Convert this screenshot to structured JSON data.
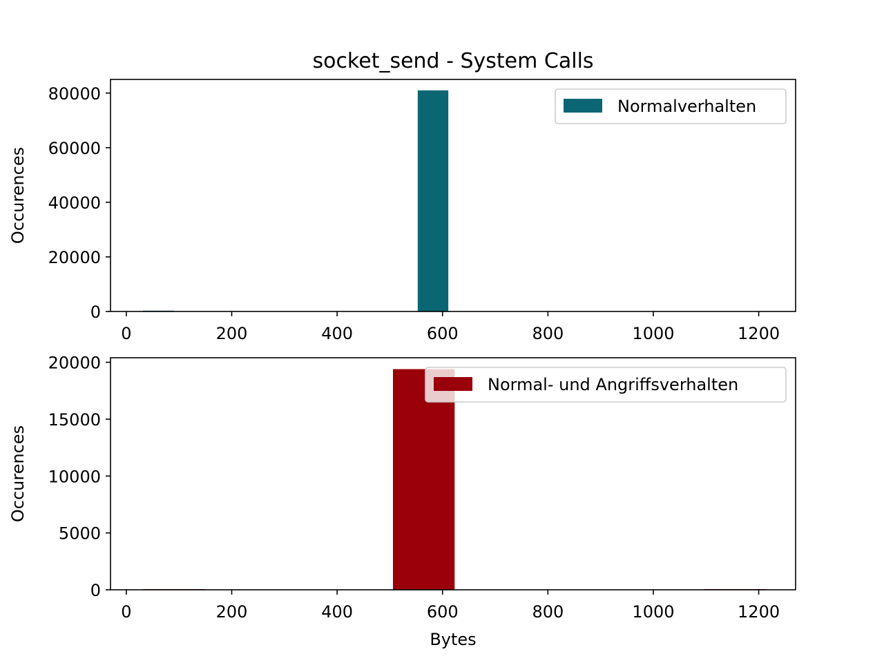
{
  "figure_title": "socket_send - System Calls",
  "chart_data": [
    {
      "type": "bar",
      "title": "socket_send - System Calls",
      "xlabel": "",
      "ylabel": "Occurences",
      "xlim": [
        -30,
        1270
      ],
      "ylim": [
        0,
        85000
      ],
      "xticks": [
        0,
        200,
        400,
        600,
        800,
        1000,
        1200
      ],
      "yticks": [
        0,
        20000,
        40000,
        60000,
        80000
      ],
      "grid": false,
      "legend_position": "top-right",
      "series": [
        {
          "name": "Normalverhalten",
          "color": "#0a6673",
          "bins": [
            {
              "x0": 32,
              "x1": 90,
              "value": 300
            },
            {
              "x0": 553,
              "x1": 611,
              "value": 81000
            }
          ]
        }
      ]
    },
    {
      "type": "bar",
      "title": "",
      "xlabel": "Bytes",
      "ylabel": "Occurences",
      "xlim": [
        -30,
        1270
      ],
      "ylim": [
        0,
        20400
      ],
      "xticks": [
        0,
        200,
        400,
        600,
        800,
        1000,
        1200
      ],
      "yticks": [
        0,
        5000,
        10000,
        15000,
        20000
      ],
      "grid": false,
      "legend_position": "top-right",
      "series": [
        {
          "name": "Normal- und Angriffsverhalten",
          "color": "#9a0009",
          "bins": [
            {
              "x0": 32,
              "x1": 149,
              "value": 60
            },
            {
              "x0": 506,
              "x1": 623,
              "value": 19400
            },
            {
              "x0": 1097,
              "x1": 1214,
              "value": 60
            }
          ]
        }
      ]
    }
  ]
}
